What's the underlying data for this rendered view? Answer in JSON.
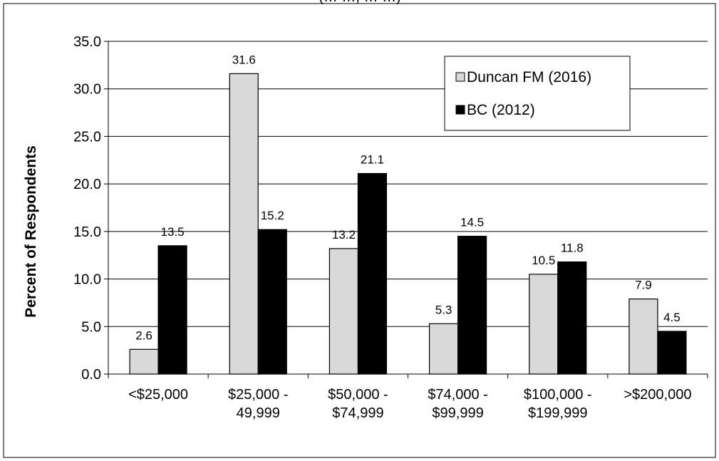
{
  "chart_data": {
    "type": "bar",
    "title": "",
    "title_fragment": "(… …, … …)",
    "xlabel": "",
    "ylabel": "Percent of Respondents",
    "ylim": [
      0,
      35
    ],
    "yticks": [
      "0.0",
      "5.0",
      "10.0",
      "15.0",
      "20.0",
      "25.0",
      "30.0",
      "35.0"
    ],
    "grid": true,
    "legend_position": "top-right",
    "categories": [
      [
        "<$25,000"
      ],
      [
        "$25,000 -",
        "49,999"
      ],
      [
        "$50,000 -",
        "$74,999"
      ],
      [
        "$74,000 -",
        "$99,999"
      ],
      [
        "$100,000 -",
        "$199,999"
      ],
      [
        ">$200,000"
      ]
    ],
    "series": [
      {
        "name": "Duncan FM (2016)",
        "color": "#d9d9d9",
        "values": [
          2.6,
          31.6,
          13.2,
          5.3,
          10.5,
          7.9
        ],
        "labels": [
          "2.6",
          "31.6",
          "13.2",
          "5.3",
          "10.5",
          "7.9"
        ]
      },
      {
        "name": "BC (2012)",
        "color": "#000000",
        "values": [
          13.5,
          15.2,
          21.1,
          14.5,
          11.8,
          4.5
        ],
        "labels": [
          "13.5",
          "15.2",
          "21.1",
          "14.5",
          "11.8",
          "4.5"
        ]
      }
    ]
  }
}
